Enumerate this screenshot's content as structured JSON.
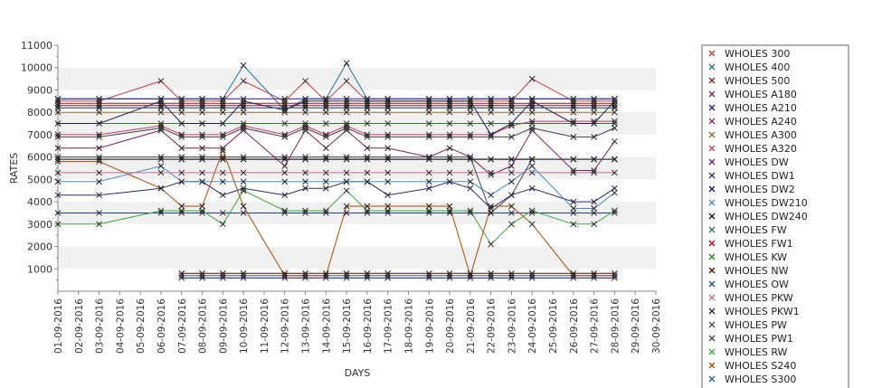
{
  "chart_data": {
    "type": "line",
    "title": "",
    "xlabel": "DAYS",
    "ylabel": "RATES",
    "ylim": [
      0,
      11000
    ],
    "yticks": [
      1000,
      2000,
      3000,
      4000,
      5000,
      6000,
      7000,
      8000,
      9000,
      10000,
      11000
    ],
    "grid": "horizontal alternating bands",
    "legend": "right",
    "marker": "x",
    "categories": [
      "01-09-2016",
      "02-09-2016",
      "03-09-2016",
      "04-09-2016",
      "05-09-2016",
      "06-09-2016",
      "07-09-2016",
      "08-09-2016",
      "09-09-2016",
      "10-09-2016",
      "11-09-2016",
      "12-09-2016",
      "13-09-2016",
      "14-09-2016",
      "15-09-2016",
      "16-09-2016",
      "17-09-2016",
      "18-09-2016",
      "19-09-2016",
      "20-09-2016",
      "21-09-2016",
      "22-09-2016",
      "23-09-2016",
      "24-09-2016",
      "25-09-2016",
      "26-09-2016",
      "27-09-2016",
      "28-09-2016",
      "29-09-2016",
      "30-09-2016"
    ],
    "series": [
      {
        "name": "WHOLES 300",
        "color": "#cc3333",
        "values": [
          8500,
          null,
          8500,
          null,
          null,
          9400,
          8500,
          8500,
          8500,
          9400,
          null,
          8500,
          9400,
          8500,
          9400,
          8500,
          8500,
          null,
          8500,
          8500,
          8500,
          8500,
          8500,
          9500,
          null,
          8500,
          8500,
          8500,
          null,
          null
        ]
      },
      {
        "name": "WHOLES 400",
        "color": "#1f6f9e",
        "values": [
          8600,
          null,
          8600,
          null,
          null,
          8600,
          8600,
          8600,
          8600,
          10100,
          null,
          8100,
          8600,
          8600,
          10200,
          8600,
          8600,
          null,
          8600,
          8600,
          8600,
          8600,
          8600,
          8600,
          null,
          8600,
          8600,
          8600,
          null,
          null
        ]
      },
      {
        "name": "WHOLES 500",
        "color": "#8b1a1a",
        "values": [
          8300,
          null,
          8300,
          null,
          null,
          8300,
          8300,
          8300,
          8300,
          8300,
          null,
          8300,
          8300,
          8300,
          8300,
          8300,
          8300,
          null,
          8300,
          8300,
          8300,
          8300,
          8300,
          8300,
          null,
          8300,
          8300,
          8300,
          null,
          null
        ]
      },
      {
        "name": "WHOLES A180",
        "color": "#7a1f5c",
        "values": [
          6400,
          null,
          6400,
          null,
          null,
          7200,
          6400,
          6400,
          6400,
          7200,
          null,
          5600,
          7200,
          6400,
          7200,
          6400,
          6400,
          null,
          6000,
          6400,
          6000,
          5200,
          5600,
          7200,
          null,
          5400,
          5400,
          6700,
          null,
          null
        ]
      },
      {
        "name": "WHOLES A210",
        "color": "#1a1a99",
        "values": [
          8600,
          null,
          8600,
          null,
          null,
          8600,
          8600,
          8600,
          8600,
          8600,
          null,
          8600,
          8600,
          8600,
          8600,
          8600,
          8600,
          null,
          8600,
          8600,
          8600,
          8600,
          8600,
          8600,
          null,
          8600,
          8600,
          8600,
          null,
          null
        ]
      },
      {
        "name": "WHOLES A240",
        "color": "#992266",
        "values": [
          8200,
          null,
          8200,
          null,
          null,
          8200,
          8200,
          8200,
          8200,
          8200,
          null,
          8200,
          8200,
          8200,
          8200,
          8200,
          8200,
          null,
          8200,
          8200,
          8200,
          8200,
          8200,
          8200,
          null,
          8200,
          8200,
          8200,
          null,
          null
        ]
      },
      {
        "name": "WHOLES A300",
        "color": "#996622",
        "values": [
          8000,
          null,
          8000,
          null,
          null,
          8000,
          8000,
          8000,
          8000,
          8000,
          null,
          8000,
          8000,
          8000,
          8000,
          8000,
          8000,
          null,
          8000,
          8000,
          8000,
          8000,
          8000,
          8000,
          null,
          8000,
          8000,
          8000,
          null,
          null
        ]
      },
      {
        "name": "WHOLES A320",
        "color": "#cc3366",
        "values": [
          7000,
          null,
          7000,
          null,
          null,
          7400,
          7000,
          7000,
          7000,
          7400,
          null,
          7000,
          7400,
          7000,
          7400,
          7000,
          7000,
          null,
          7000,
          7000,
          7000,
          7000,
          7400,
          7600,
          null,
          7600,
          7600,
          7600,
          null,
          null
        ]
      },
      {
        "name": "WHOLES DW",
        "color": "#6a1b9a",
        "values": [
          null,
          null,
          null,
          null,
          null,
          null,
          5900,
          5900,
          5900,
          5900,
          null,
          5900,
          5900,
          5900,
          5900,
          5900,
          5900,
          null,
          5900,
          5900,
          5900,
          5900,
          5900,
          5900,
          null,
          5900,
          5900,
          5900,
          null,
          null
        ]
      },
      {
        "name": "WHOLES DW1",
        "color": "#2a2a7a",
        "values": [
          4300,
          null,
          4300,
          null,
          null,
          4600,
          4900,
          4900,
          4300,
          4600,
          null,
          4300,
          4600,
          4600,
          4900,
          4900,
          4300,
          null,
          4600,
          4900,
          4600,
          3700,
          4300,
          4600,
          null,
          4000,
          4000,
          4600,
          null,
          null
        ]
      },
      {
        "name": "WHOLES DW2",
        "color": "#0d0d8a",
        "values": [
          null,
          null,
          null,
          null,
          null,
          null,
          600,
          600,
          600,
          600,
          null,
          600,
          600,
          600,
          600,
          600,
          600,
          null,
          600,
          600,
          600,
          600,
          600,
          600,
          null,
          600,
          600,
          600,
          null,
          null
        ]
      },
      {
        "name": "WHOLES DW210",
        "color": "#3a8fd0",
        "values": [
          4900,
          null,
          4900,
          null,
          null,
          5600,
          4900,
          4900,
          4900,
          4900,
          null,
          4900,
          4900,
          4900,
          4900,
          4900,
          4900,
          null,
          4900,
          4900,
          4900,
          4300,
          4900,
          5600,
          null,
          3700,
          3700,
          4400,
          null,
          null
        ]
      },
      {
        "name": "WHOLES DW240",
        "color": "#111111",
        "values": [
          5900,
          null,
          5900,
          null,
          null,
          5900,
          5900,
          5900,
          5900,
          5900,
          null,
          5900,
          5900,
          5900,
          5900,
          5900,
          5900,
          null,
          5900,
          5900,
          5900,
          5900,
          5900,
          5900,
          null,
          5900,
          5900,
          5900,
          null,
          null
        ]
      },
      {
        "name": "WHOLES FW",
        "color": "#2f6f4f",
        "values": [
          null,
          null,
          null,
          null,
          null,
          null,
          700,
          700,
          700,
          700,
          null,
          700,
          700,
          700,
          700,
          700,
          700,
          null,
          700,
          700,
          700,
          700,
          700,
          700,
          null,
          700,
          700,
          700,
          null,
          null
        ]
      },
      {
        "name": "WHOLES FW1",
        "color": "#cc0000",
        "values": [
          8400,
          null,
          8400,
          null,
          null,
          8400,
          8400,
          8400,
          8400,
          8400,
          null,
          8400,
          8400,
          8400,
          8400,
          8400,
          8400,
          null,
          8400,
          8400,
          8400,
          8400,
          8400,
          8400,
          null,
          8400,
          8400,
          8400,
          null,
          null
        ]
      },
      {
        "name": "WHOLES KW",
        "color": "#1a8a1a",
        "values": [
          7500,
          null,
          7500,
          null,
          null,
          7500,
          7500,
          7500,
          7500,
          7500,
          null,
          7500,
          7500,
          7500,
          7500,
          7500,
          7500,
          null,
          7500,
          7500,
          7500,
          7500,
          7500,
          7500,
          null,
          7500,
          7500,
          7500,
          null,
          null
        ]
      },
      {
        "name": "WHOLES NW",
        "color": "#660000",
        "values": [
          null,
          null,
          null,
          null,
          null,
          null,
          800,
          800,
          800,
          800,
          null,
          800,
          800,
          800,
          800,
          800,
          800,
          null,
          800,
          800,
          800,
          800,
          800,
          800,
          null,
          800,
          800,
          800,
          null,
          null
        ]
      },
      {
        "name": "WHOLES OW",
        "color": "#1f3f9f",
        "values": [
          3500,
          null,
          3500,
          null,
          null,
          3500,
          3500,
          3500,
          3500,
          3500,
          null,
          3500,
          3500,
          3500,
          3500,
          3500,
          3500,
          null,
          3500,
          3500,
          3500,
          3500,
          3500,
          3500,
          null,
          3500,
          3500,
          3500,
          null,
          null
        ]
      },
      {
        "name": "WHOLES PKW",
        "color": "#cc6699",
        "values": [
          5300,
          null,
          5300,
          null,
          null,
          5300,
          5300,
          5300,
          5300,
          5300,
          null,
          5300,
          5300,
          5300,
          5300,
          5300,
          5300,
          null,
          5300,
          5300,
          5300,
          5300,
          5300,
          5300,
          null,
          5300,
          5300,
          5300,
          null,
          null
        ]
      },
      {
        "name": "WHOLES PKW1",
        "color": "#1a1a66",
        "values": [
          7500,
          null,
          7500,
          null,
          null,
          8500,
          7500,
          7500,
          7500,
          8500,
          null,
          8100,
          8500,
          8500,
          8500,
          8500,
          8500,
          null,
          8500,
          8500,
          8500,
          7000,
          7500,
          8500,
          null,
          7500,
          7500,
          8500,
          null,
          null
        ]
      },
      {
        "name": "WHOLES PW",
        "color": "#444444",
        "values": [
          6000,
          null,
          6000,
          null,
          null,
          6000,
          6000,
          6000,
          6000,
          6000,
          null,
          6000,
          6000,
          6000,
          6000,
          6000,
          6000,
          null,
          6000,
          6000,
          6000,
          3500,
          4300,
          5900,
          null,
          5900,
          5900,
          5900,
          null,
          null
        ]
      },
      {
        "name": "WHOLES PW1",
        "color": "#3f3f3f",
        "values": [
          6900,
          null,
          6900,
          null,
          null,
          7300,
          6900,
          6900,
          6900,
          7300,
          null,
          6900,
          7300,
          6900,
          7300,
          6900,
          6900,
          null,
          6900,
          6900,
          6900,
          6900,
          6900,
          7300,
          null,
          6900,
          6900,
          7300,
          null,
          null
        ]
      },
      {
        "name": "WHOLES RW",
        "color": "#33aa33",
        "values": [
          3000,
          null,
          3000,
          null,
          null,
          3600,
          3600,
          3600,
          3000,
          4500,
          null,
          3600,
          3600,
          3600,
          4500,
          3600,
          3600,
          null,
          3600,
          3600,
          3600,
          2100,
          3000,
          3600,
          null,
          3000,
          3000,
          3600,
          null,
          null
        ]
      },
      {
        "name": "WHOLES S240",
        "color": "#b34700",
        "values": [
          5800,
          null,
          5800,
          null,
          null,
          4600,
          3800,
          3800,
          6300,
          3800,
          null,
          700,
          700,
          700,
          3800,
          3800,
          3800,
          null,
          3800,
          3800,
          700,
          3800,
          3800,
          3000,
          null,
          700,
          700,
          700,
          null,
          null
        ]
      },
      {
        "name": "WHOLES S300",
        "color": "#1a6a8a",
        "values": [
          8200,
          null,
          8200,
          null,
          null,
          8200,
          8200,
          8200,
          8200,
          8200,
          null,
          8200,
          8200,
          8200,
          8200,
          8200,
          8200,
          null,
          8200,
          8200,
          8200,
          8200,
          8200,
          8200,
          null,
          8200,
          8200,
          8200,
          null,
          null
        ]
      }
    ]
  }
}
